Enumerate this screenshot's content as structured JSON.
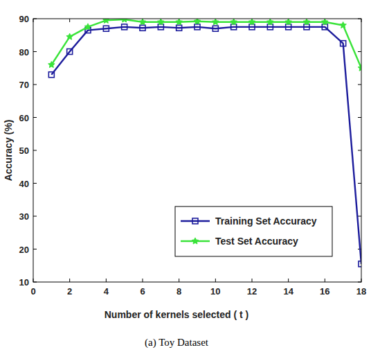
{
  "chart_data": {
    "type": "line",
    "caption": "(a) Toy Dataset",
    "x_label": "Number of kernels selected ( t )",
    "y_label": "Accuracy (%)",
    "x": [
      1,
      2,
      3,
      4,
      5,
      6,
      7,
      8,
      9,
      10,
      11,
      12,
      13,
      14,
      15,
      16,
      17,
      18
    ],
    "series": [
      {
        "name": "Training Set Accuracy",
        "color": "#1c1c9c",
        "marker": "square",
        "values": [
          73,
          80,
          86.5,
          87,
          87.5,
          87.2,
          87.5,
          87.2,
          87.5,
          87,
          87.5,
          87.5,
          87.5,
          87.5,
          87.5,
          87.5,
          82.5,
          15.5
        ]
      },
      {
        "name": "Test Set Accuracy",
        "color": "#3ae33a",
        "marker": "star",
        "values": [
          76,
          84.5,
          87.5,
          89.5,
          89.8,
          89,
          89,
          89,
          89.2,
          89,
          89,
          89,
          89,
          89,
          89,
          89,
          88,
          75
        ]
      }
    ],
    "xlim": [
      0,
      18
    ],
    "ylim": [
      10,
      90
    ],
    "xticks": [
      0,
      2,
      4,
      6,
      8,
      10,
      12,
      14,
      16,
      18
    ],
    "yticks": [
      10,
      20,
      30,
      40,
      50,
      60,
      70,
      80,
      90
    ],
    "grid": false,
    "legend": "lower right"
  }
}
